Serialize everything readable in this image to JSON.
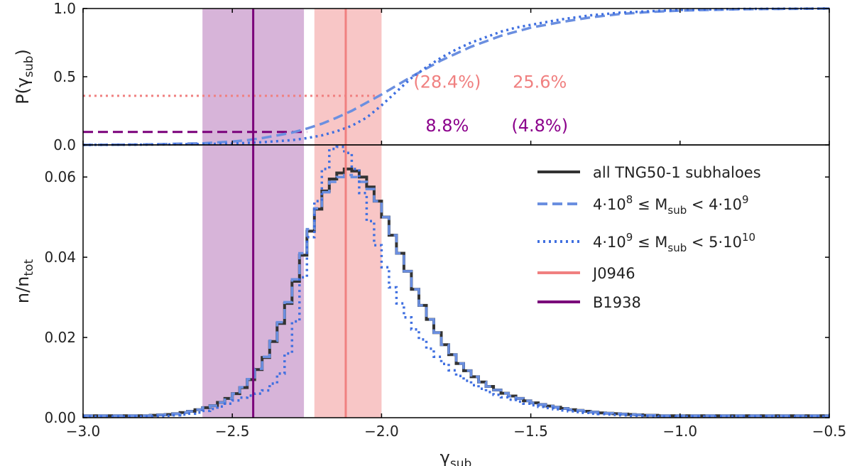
{
  "chart_data": [
    {
      "type": "line",
      "panel": "top",
      "ylabel": "P(γ_sub)",
      "ylabel_main": "P(γ",
      "ylabel_sub": "sub",
      "ylabel_close": ")",
      "xlim": [
        -3.0,
        -0.5
      ],
      "ylim": [
        0.0,
        1.0
      ],
      "x_ticks": [
        -3.0,
        -2.5,
        -2.0,
        -1.5,
        -1.0,
        -0.5
      ],
      "y_ticks": [
        0.0,
        0.5,
        1.0
      ],
      "y_tick_labels": [
        "0.0",
        "0.5",
        "1.0"
      ],
      "series": [
        {
          "key": "cdf_low",
          "name": "4·10^8 ≤ M_sub < 4·10^9",
          "style": "dashed",
          "color": "#6b8fe0",
          "x": [
            -3.0,
            -2.8,
            -2.6,
            -2.5,
            -2.45,
            -2.4,
            -2.35,
            -2.3,
            -2.25,
            -2.2,
            -2.15,
            -2.1,
            -2.05,
            -2.0,
            -1.95,
            -1.9,
            -1.85,
            -1.8,
            -1.75,
            -1.7,
            -1.65,
            -1.6,
            -1.55,
            -1.5,
            -1.4,
            -1.3,
            -1.2,
            -1.1,
            -1.0,
            -0.8,
            -0.5
          ],
          "y": [
            0.0,
            0.003,
            0.012,
            0.025,
            0.035,
            0.05,
            0.07,
            0.09,
            0.12,
            0.155,
            0.2,
            0.25,
            0.31,
            0.37,
            0.435,
            0.5,
            0.56,
            0.62,
            0.67,
            0.72,
            0.76,
            0.8,
            0.83,
            0.86,
            0.9,
            0.935,
            0.96,
            0.975,
            0.985,
            0.995,
            1.0
          ]
        },
        {
          "key": "cdf_high",
          "name": "4·10^9 ≤ M_sub < 5·10^10",
          "style": "dotted",
          "color": "#3f6fe0",
          "x": [
            -3.0,
            -2.8,
            -2.6,
            -2.5,
            -2.4,
            -2.3,
            -2.25,
            -2.2,
            -2.15,
            -2.1,
            -2.05,
            -2.0,
            -1.95,
            -1.9,
            -1.85,
            -1.8,
            -1.75,
            -1.7,
            -1.65,
            -1.6,
            -1.55,
            -1.5,
            -1.4,
            -1.3,
            -1.2,
            -1.1,
            -1.0,
            -0.8,
            -0.5
          ],
          "y": [
            0.0,
            0.002,
            0.006,
            0.01,
            0.02,
            0.035,
            0.05,
            0.07,
            0.1,
            0.14,
            0.2,
            0.29,
            0.39,
            0.49,
            0.57,
            0.64,
            0.7,
            0.75,
            0.79,
            0.83,
            0.86,
            0.88,
            0.92,
            0.95,
            0.97,
            0.98,
            0.99,
            0.997,
            1.0
          ]
        }
      ],
      "reference_lines": [
        {
          "key": "j0946",
          "color": "#f08080",
          "style": "dotted",
          "y": 0.36,
          "x_end": -2.0
        },
        {
          "key": "b1938",
          "color": "#7a007a",
          "style": "dashed",
          "y": 0.095,
          "x_end": -2.25
        }
      ],
      "annotations": [
        {
          "key": "a1",
          "text": "(28.4%)",
          "x": -1.78,
          "y": 0.46,
          "color": "#f08080"
        },
        {
          "key": "a2",
          "text": "25.6%",
          "x": -1.47,
          "y": 0.46,
          "color": "#f08080"
        },
        {
          "key": "a3",
          "text": "8.8%",
          "x": -1.78,
          "y": 0.14,
          "color": "#8b008b"
        },
        {
          "key": "a4",
          "text": "(4.8%)",
          "x": -1.47,
          "y": 0.14,
          "color": "#8b008b"
        }
      ]
    },
    {
      "type": "line",
      "panel": "bottom",
      "xlabel": "γ_sub",
      "xlabel_main": "γ",
      "xlabel_sub": "sub",
      "ylabel": "n/n_tot",
      "ylabel_main": "n/n",
      "ylabel_sub": "tot",
      "xlim": [
        -3.0,
        -0.5
      ],
      "ylim": [
        0.0,
        0.068
      ],
      "x_ticks": [
        -3.0,
        -2.5,
        -2.0,
        -1.5,
        -1.0,
        -0.5
      ],
      "x_tick_labels": [
        "−3.0",
        "−2.5",
        "−2.0",
        "−1.5",
        "−1.0",
        "−0.5"
      ],
      "y_ticks": [
        0.0,
        0.02,
        0.04,
        0.06
      ],
      "y_tick_labels": [
        "0.00",
        "0.02",
        "0.04",
        "0.06"
      ],
      "bin_edges_start": -3.0,
      "bin_width": 0.025,
      "series": [
        {
          "key": "all",
          "name": "all TNG50-1 subhaloes",
          "style": "solid",
          "color": "#333333",
          "values": [
            0.0005,
            0.0005,
            0.0005,
            0.0005,
            0.0005,
            0.0005,
            0.0005,
            0.0005,
            0.0005,
            0.0006,
            0.0007,
            0.0008,
            0.001,
            0.0013,
            0.0016,
            0.002,
            0.0025,
            0.003,
            0.0038,
            0.0048,
            0.006,
            0.0075,
            0.0095,
            0.012,
            0.015,
            0.019,
            0.0235,
            0.0285,
            0.034,
            0.0405,
            0.0465,
            0.052,
            0.0565,
            0.0595,
            0.061,
            0.062,
            0.0615,
            0.06,
            0.0575,
            0.054,
            0.05,
            0.0455,
            0.041,
            0.0365,
            0.032,
            0.028,
            0.0245,
            0.0212,
            0.0182,
            0.0157,
            0.0135,
            0.0117,
            0.0102,
            0.0089,
            0.0078,
            0.0069,
            0.0061,
            0.0054,
            0.0048,
            0.0042,
            0.0037,
            0.0033,
            0.0029,
            0.0026,
            0.0023,
            0.002,
            0.0018,
            0.0016,
            0.0014,
            0.0012,
            0.0011,
            0.001,
            0.0009,
            0.0008,
            0.0007,
            0.0006,
            0.0006,
            0.0005,
            0.0005,
            0.0005,
            0.0005,
            0.0005,
            0.0005,
            0.0005,
            0.0005,
            0.0005,
            0.0005,
            0.0005,
            0.0005,
            0.0005,
            0.0005,
            0.0005,
            0.0005,
            0.0005,
            0.0005,
            0.0005,
            0.0005,
            0.0005,
            0.0005,
            0.0005
          ]
        },
        {
          "key": "low",
          "name": "4·10^8 ≤ M_sub < 4·10^9",
          "label_pre": "4·10",
          "label_exp1": "8",
          "label_mid": " ≤ M",
          "label_sub": "sub",
          "label_mid2": " < 4·10",
          "label_exp2": "9",
          "style": "dashed",
          "color": "#6b8fe0",
          "values": [
            0.0005,
            0.0005,
            0.0005,
            0.0005,
            0.0005,
            0.0005,
            0.0005,
            0.0005,
            0.0005,
            0.0006,
            0.0007,
            0.0008,
            0.001,
            0.0013,
            0.0016,
            0.002,
            0.0025,
            0.003,
            0.0038,
            0.0048,
            0.006,
            0.0076,
            0.0096,
            0.0122,
            0.0152,
            0.0192,
            0.0238,
            0.0288,
            0.0345,
            0.041,
            0.047,
            0.0522,
            0.0562,
            0.0588,
            0.06,
            0.0605,
            0.06,
            0.0588,
            0.057,
            0.054,
            0.05,
            0.0455,
            0.041,
            0.0365,
            0.032,
            0.028,
            0.0245,
            0.0212,
            0.0182,
            0.0157,
            0.0135,
            0.0117,
            0.0102,
            0.0089,
            0.0078,
            0.0069,
            0.0061,
            0.0054,
            0.0048,
            0.0042,
            0.0037,
            0.0033,
            0.0029,
            0.0026,
            0.0023,
            0.002,
            0.0018,
            0.0016,
            0.0014,
            0.0012,
            0.0011,
            0.001,
            0.0009,
            0.0008,
            0.0007,
            0.0006,
            0.0006,
            0.0005,
            0.0005,
            0.0005,
            0.0005,
            0.0005,
            0.0005,
            0.0005,
            0.0005,
            0.0005,
            0.0005,
            0.0005,
            0.0005,
            0.0005,
            0.0005,
            0.0005,
            0.0005,
            0.0005,
            0.0005,
            0.0005,
            0.0005,
            0.0005,
            0.0005,
            0.0005
          ]
        },
        {
          "key": "high",
          "name": "4·10^9 ≤ M_sub < 5·10^10",
          "label_pre": "4·10",
          "label_exp1": "9",
          "label_mid": " ≤ M",
          "label_sub": "sub",
          "label_mid2": " < 5·10",
          "label_exp2": "10",
          "style": "dotted",
          "color": "#3f6fe0",
          "values": [
            0.0003,
            0.0003,
            0.0003,
            0.0003,
            0.0003,
            0.0003,
            0.0003,
            0.0003,
            0.0003,
            0.0003,
            0.0004,
            0.0005,
            0.0006,
            0.0008,
            0.001,
            0.0013,
            0.0017,
            0.0022,
            0.0028,
            0.0035,
            0.0043,
            0.005,
            0.0055,
            0.006,
            0.0068,
            0.0085,
            0.011,
            0.016,
            0.024,
            0.035,
            0.045,
            0.054,
            0.062,
            0.067,
            0.0675,
            0.066,
            0.062,
            0.056,
            0.049,
            0.043,
            0.0375,
            0.0325,
            0.0285,
            0.025,
            0.022,
            0.0195,
            0.0172,
            0.0152,
            0.0134,
            0.0118,
            0.0104,
            0.0092,
            0.0081,
            0.0072,
            0.0064,
            0.0057,
            0.0051,
            0.0045,
            0.004,
            0.0035,
            0.0031,
            0.0027,
            0.0024,
            0.0021,
            0.0018,
            0.0016,
            0.0014,
            0.0012,
            0.001,
            0.0009,
            0.0008,
            0.0007,
            0.0006,
            0.0005,
            0.0005,
            0.0004,
            0.0004,
            0.0003,
            0.0003,
            0.0003,
            0.0003,
            0.0003,
            0.0003,
            0.0003,
            0.0003,
            0.0003,
            0.0003,
            0.0003,
            0.0003,
            0.0003,
            0.0003,
            0.0003,
            0.0003,
            0.0003,
            0.0003,
            0.0003,
            0.0003,
            0.0003,
            0.0003,
            0.0003
          ]
        }
      ],
      "vertical_lines": [
        {
          "key": "j0946",
          "name": "J0946",
          "x": -2.12,
          "color": "#f08080"
        },
        {
          "key": "b1938",
          "name": "B1938",
          "x": -2.43,
          "color": "#7a007a"
        }
      ],
      "legend_placement": "top-right"
    }
  ],
  "bands": [
    {
      "key": "b1938-band",
      "x0": -2.6,
      "x1": -2.26,
      "color": "#b06ab3",
      "opacity": 0.5
    },
    {
      "key": "j0946-band",
      "x0": -2.225,
      "x1": -2.0,
      "color": "#f08080",
      "opacity": 0.45
    }
  ]
}
